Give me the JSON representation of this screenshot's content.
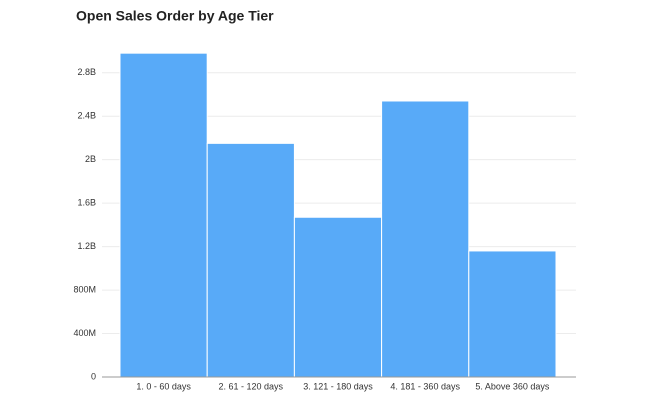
{
  "chart_data": {
    "type": "bar",
    "title": "Open Sales Order by Age Tier",
    "categories": [
      "1. 0 - 60 days",
      "2. 61 - 120 days",
      "3. 121 - 180 days",
      "4. 181 - 360 days",
      "5. Above 360 days"
    ],
    "values": [
      2980000000,
      2150000000,
      1470000000,
      2540000000,
      1160000000
    ],
    "color": "#58aaf8",
    "ylim": [
      0,
      3000000000
    ],
    "yticks": [
      0,
      {
        "value": 400000000,
        "label": "400M"
      },
      {
        "value": 800000000,
        "label": "800M"
      },
      {
        "value": 1200000000,
        "label": "1.2B"
      },
      {
        "value": 1600000000,
        "label": "1.6B"
      },
      {
        "value": 2000000000,
        "label": "2B"
      },
      {
        "value": 2400000000,
        "label": "2.4B"
      },
      {
        "value": 2800000000,
        "label": "2.8B"
      }
    ],
    "grid": true
  }
}
